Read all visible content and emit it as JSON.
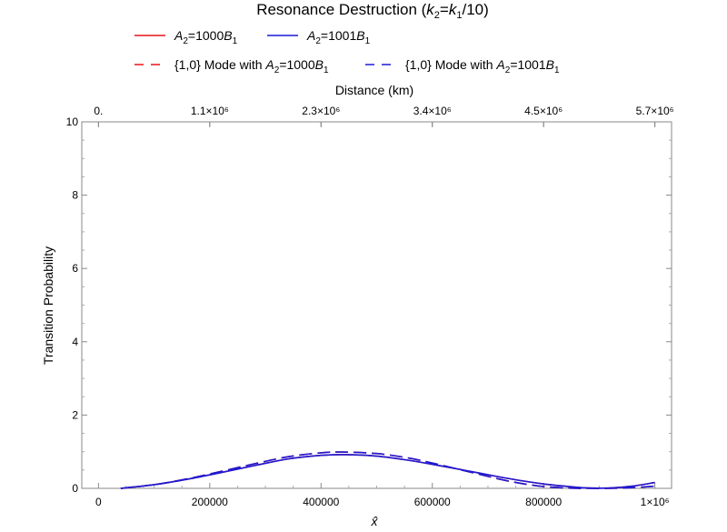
{
  "chart_data": {
    "type": "line",
    "title": "Resonance Destruction (k2=k1/10)",
    "xlabel": "x̂",
    "ylabel": "Transition Probability",
    "top_axis_label": "Distance (km)",
    "xlim": [
      -30000,
      1030000
    ],
    "ylim": [
      0,
      10
    ],
    "grid": false,
    "legend_position": "top",
    "x_tick_labels": [
      "0",
      "200000",
      "400000",
      "600000",
      "800000",
      "1×10⁶"
    ],
    "x_ticks": [
      0,
      200000,
      400000,
      600000,
      800000,
      1000000
    ],
    "y_tick_labels": [
      "0",
      "2",
      "4",
      "6",
      "8",
      "10"
    ],
    "y_ticks": [
      0,
      2,
      4,
      6,
      8,
      10
    ],
    "top_tick_labels": [
      "0.",
      "1.1×10⁶",
      "2.3×10⁶",
      "3.4×10⁶",
      "4.5×10⁶",
      "5.7×10⁶"
    ],
    "x": [
      40000,
      100000,
      160000,
      220000,
      280000,
      340000,
      400000,
      440000,
      500000,
      560000,
      620000,
      680000,
      740000,
      800000,
      860000,
      880000,
      920000,
      960000,
      1000000
    ],
    "series": [
      {
        "name": "A2=1000B1",
        "style": "solid",
        "color": "#e8141c",
        "values": [
          0.0,
          0.1,
          0.25,
          0.43,
          0.62,
          0.8,
          0.9,
          0.92,
          0.88,
          0.76,
          0.6,
          0.43,
          0.26,
          0.12,
          0.03,
          0.01,
          0.01,
          0.06,
          0.16
        ]
      },
      {
        "name": "A2=1001B1",
        "style": "solid",
        "color": "#1a1ad6",
        "values": [
          0.0,
          0.1,
          0.25,
          0.43,
          0.62,
          0.8,
          0.9,
          0.92,
          0.88,
          0.76,
          0.6,
          0.43,
          0.26,
          0.12,
          0.03,
          0.01,
          0.01,
          0.06,
          0.16
        ]
      },
      {
        "name": "{1,0} Mode with A2=1000B1",
        "style": "dashed",
        "color": "#e8141c",
        "values": [
          0.0,
          0.1,
          0.26,
          0.46,
          0.67,
          0.86,
          0.97,
          0.99,
          0.95,
          0.82,
          0.62,
          0.4,
          0.19,
          0.05,
          0.0,
          0.0,
          0.0,
          0.02,
          0.06
        ]
      },
      {
        "name": "{1,0} Mode with A2=1001B1",
        "style": "dashed",
        "color": "#1a1ad6",
        "values": [
          0.0,
          0.1,
          0.26,
          0.46,
          0.67,
          0.86,
          0.97,
          0.99,
          0.95,
          0.82,
          0.62,
          0.4,
          0.19,
          0.05,
          0.0,
          0.0,
          0.0,
          0.02,
          0.06
        ]
      }
    ],
    "legend": {
      "row1": [
        {
          "prefix": "A",
          "sub": "2",
          "mid": "=1000",
          "var": "B",
          "sub2": "1",
          "color": "#e8141c",
          "style": "solid"
        },
        {
          "prefix": "A",
          "sub": "2",
          "mid": "=1001",
          "var": "B",
          "sub2": "1",
          "color": "#1a1ad6",
          "style": "solid"
        }
      ],
      "row2": [
        {
          "lead": "{1,0} Mode with ",
          "prefix": "A",
          "sub": "2",
          "mid": "=1000",
          "var": "B",
          "sub2": "1",
          "color": "#e8141c",
          "style": "dashed"
        },
        {
          "lead": "{1,0} Mode with ",
          "prefix": "A",
          "sub": "2",
          "mid": "=1001",
          "var": "B",
          "sub2": "1",
          "color": "#1a1ad6",
          "style": "dashed"
        }
      ]
    }
  }
}
